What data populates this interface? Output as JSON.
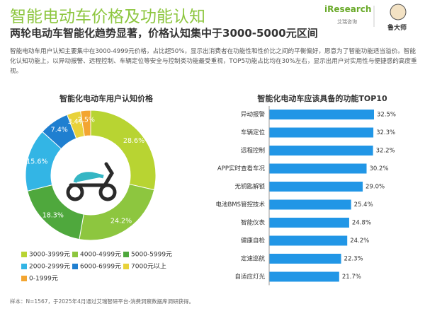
{
  "header": {
    "title": "智能电动车价格及功能认知",
    "subtitle": "两轮电动车智能化趋势显著，价格认知集中于3000-5000元区间",
    "brand": "iResearch",
    "brand_sub": "艾瑞咨询",
    "partner": "鲁大师"
  },
  "description": "智能电动车用户认知主要集中在3000-4999元价格，占比超50%，显示出消费者在功能性和性价比之间的平衡偏好，愿意为了智能功能适当溢价。智能化认知功能上，以异动报警、远程控制、车辆定位等安全与控制类功能最受重视，TOP5功能占比均在30%左右，显示出用户对实用性与便捷感的高度重视。",
  "source": "样本：N=1567，于2025年4月通过艾瑞智研平台-消费洞察数据库调研获得。",
  "chart_data": [
    {
      "type": "donut",
      "title": "智能化电动车用户认知价格",
      "categories": [
        "3000-3999元",
        "4000-4999元",
        "5000-5999元",
        "2000-2999元",
        "6000-6999元",
        "7000元以上",
        "0-1999元"
      ],
      "values": [
        28.6,
        24.2,
        18.3,
        15.6,
        7.4,
        3.4,
        2.5
      ],
      "value_labels": [
        "28.6%",
        "24.2%",
        "18.3%",
        "15.6%",
        "7.4%",
        "3.4%",
        "2.5%"
      ],
      "colors": [
        "#b8d432",
        "#8dc63f",
        "#4fa83d",
        "#33b5e5",
        "#1f7fd0",
        "#e8d23a",
        "#f3a531"
      ]
    },
    {
      "type": "hbar",
      "title": "智能化电动车应该具备的功能TOP10",
      "categories": [
        "异动报警",
        "车辆定位",
        "远程控制",
        "APP实时查看车况",
        "无钥匙解锁",
        "电池BMS管控技术",
        "智能仪表",
        "健康自检",
        "定速巡航",
        "自适应灯光"
      ],
      "values": [
        32.5,
        32.3,
        32.2,
        30.2,
        29.0,
        25.4,
        24.8,
        24.2,
        22.3,
        21.7
      ],
      "value_labels": [
        "32.5%",
        "32.3%",
        "32.2%",
        "30.2%",
        "29.0%",
        "25.4%",
        "24.8%",
        "24.2%",
        "22.3%",
        "21.7%"
      ],
      "color": "#2196e6"
    }
  ]
}
